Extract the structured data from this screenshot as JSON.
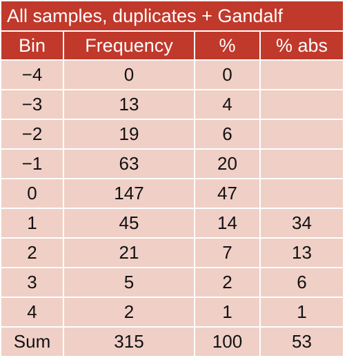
{
  "table": {
    "title": "All samples, duplicates + Gandalf",
    "columns": [
      "Bin",
      "Frequency",
      "%",
      "% abs"
    ],
    "rows": [
      [
        "−4",
        "0",
        "0",
        ""
      ],
      [
        "−3",
        "13",
        "4",
        ""
      ],
      [
        "−2",
        "19",
        "6",
        ""
      ],
      [
        "−1",
        "63",
        "20",
        ""
      ],
      [
        "0",
        "147",
        "47",
        ""
      ],
      [
        "1",
        "45",
        "14",
        "34"
      ],
      [
        "2",
        "21",
        "7",
        "13"
      ],
      [
        "3",
        "5",
        "2",
        "6"
      ],
      [
        "4",
        "2",
        "1",
        "1"
      ],
      [
        "Sum",
        "315",
        "100",
        "53"
      ]
    ]
  },
  "colors": {
    "header_bg": "#c0392b",
    "cell_bg": "#efcfc6",
    "header_text": "#ffffff"
  }
}
